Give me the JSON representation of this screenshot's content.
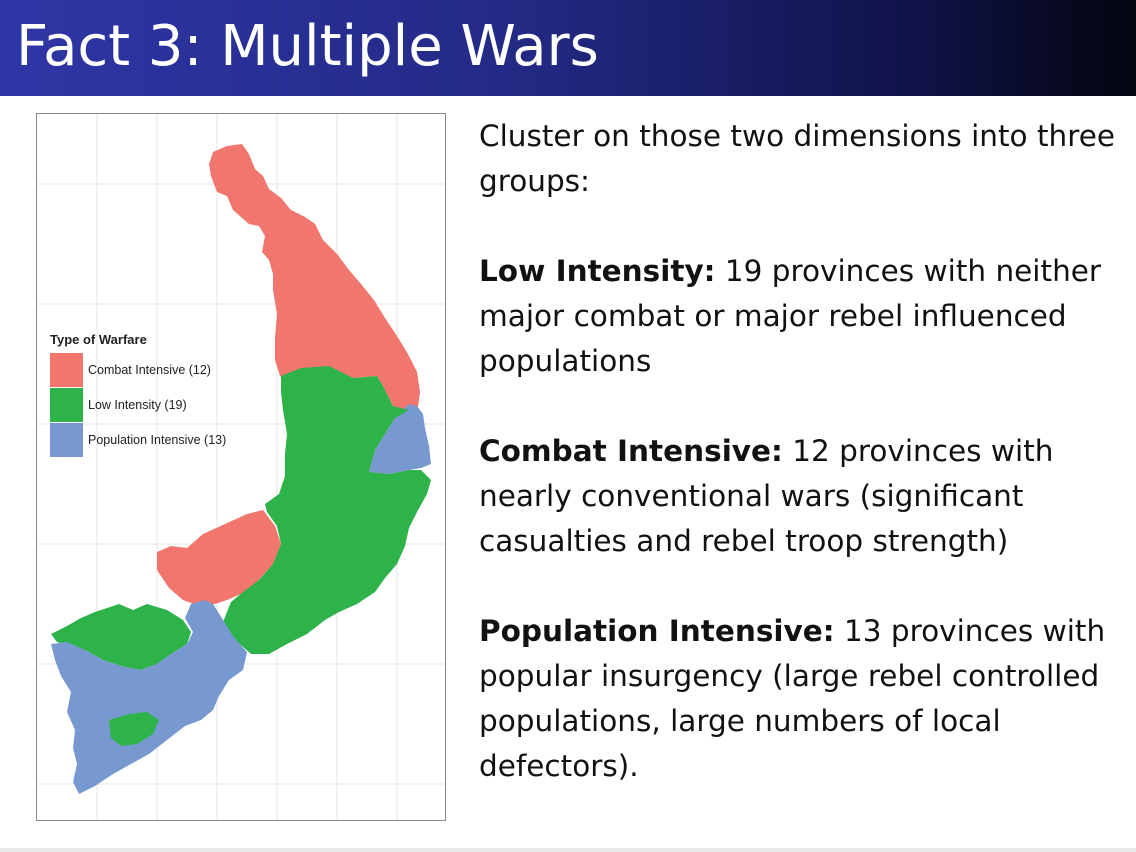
{
  "slide": {
    "title": "Fact 3: Multiple Wars"
  },
  "map": {
    "legend_title": "Type of Warfare",
    "categories": [
      {
        "label": "Combat Intensive (12)",
        "color": "#f0766e"
      },
      {
        "label": "Low Intensity (19)",
        "color": "#2db34a"
      },
      {
        "label": "Population Intensive (13)",
        "color": "#7799d0"
      }
    ]
  },
  "body": {
    "intro": "Cluster on those two dimensions into three groups:",
    "groups": [
      {
        "heading": "Low Intensity:",
        "text": " 19 provinces with neither major combat or major rebel influenced populations"
      },
      {
        "heading": "Combat Intensive:",
        "text": " 12 provinces with nearly conventional wars (significant casualties and rebel troop strength)"
      },
      {
        "heading": "Population Intensive:",
        "text": " 13 provinces with popular insurgency (large rebel controlled populations, large numbers of local defectors)."
      }
    ]
  }
}
